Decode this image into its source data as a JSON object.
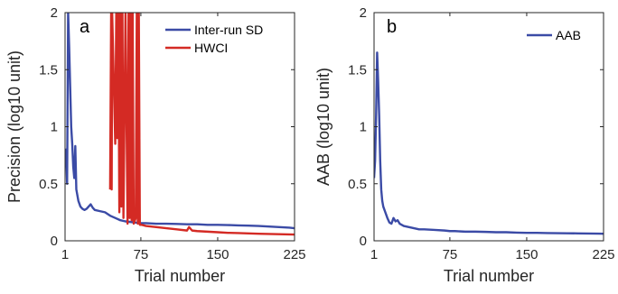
{
  "chart_data": [
    {
      "type": "line",
      "panel_label": "a",
      "xlabel": "Trial number",
      "ylabel": "Precision (log10 unit)",
      "xlim": [
        1,
        225
      ],
      "ylim": [
        0,
        2
      ],
      "xticks": [
        1,
        75,
        150,
        225
      ],
      "yticks": [
        0,
        0.5,
        1,
        1.5,
        2
      ],
      "xtick_labels": [
        "1",
        "75",
        "150",
        "225"
      ],
      "ytick_labels": [
        "0",
        "0.5",
        "1",
        "1.5",
        "2"
      ],
      "legend_position": "top-right",
      "grid": false,
      "series": [
        {
          "name": "Inter-run SD",
          "color": "#3b4ba6",
          "x": [
            1,
            2,
            3,
            4,
            5,
            6,
            7,
            8,
            9,
            10,
            11,
            12,
            14,
            16,
            18,
            20,
            22,
            24,
            26,
            28,
            30,
            35,
            40,
            45,
            50,
            55,
            60,
            65,
            70,
            75,
            80,
            90,
            100,
            110,
            120,
            130,
            140,
            150,
            160,
            170,
            180,
            190,
            200,
            210,
            220,
            225
          ],
          "y": [
            0.75,
            0.8,
            0.5,
            2.0,
            1.7,
            1.35,
            1.0,
            0.85,
            0.65,
            0.55,
            0.83,
            0.45,
            0.35,
            0.3,
            0.28,
            0.27,
            0.28,
            0.3,
            0.32,
            0.29,
            0.27,
            0.26,
            0.25,
            0.22,
            0.2,
            0.18,
            0.17,
            0.165,
            0.16,
            0.155,
            0.155,
            0.15,
            0.15,
            0.148,
            0.145,
            0.145,
            0.14,
            0.14,
            0.138,
            0.135,
            0.133,
            0.13,
            0.125,
            0.12,
            0.115,
            0.11
          ]
        },
        {
          "name": "HWCI",
          "color": "#d42a24",
          "x": [
            45,
            46,
            46.5,
            47,
            50,
            51,
            52,
            53,
            54,
            55,
            56,
            57,
            58,
            60,
            62,
            63,
            64,
            65,
            66,
            67,
            68,
            70,
            71,
            72,
            73,
            74,
            76,
            80,
            90,
            100,
            110,
            120,
            122,
            125,
            130,
            140,
            150,
            160,
            170,
            180,
            190,
            200,
            210,
            220,
            225
          ],
          "y": [
            0.45,
            2.0,
            0.45,
            2.0,
            0.85,
            2.0,
            0.9,
            2.0,
            0.25,
            2.0,
            0.3,
            2.0,
            0.2,
            2.0,
            0.15,
            2.0,
            0.2,
            2.0,
            0.18,
            2.0,
            0.15,
            0.2,
            2.0,
            0.15,
            2.0,
            0.14,
            0.14,
            0.13,
            0.12,
            0.11,
            0.1,
            0.09,
            0.12,
            0.09,
            0.085,
            0.08,
            0.075,
            0.07,
            0.068,
            0.065,
            0.062,
            0.06,
            0.058,
            0.056,
            0.055
          ]
        }
      ]
    },
    {
      "type": "line",
      "panel_label": "b",
      "xlabel": "Trial number",
      "ylabel": "AAB (log10 unit)",
      "xlim": [
        1,
        225
      ],
      "ylim": [
        0,
        2
      ],
      "xticks": [
        1,
        75,
        150,
        225
      ],
      "yticks": [
        0,
        0.5,
        1,
        1.5,
        2
      ],
      "xtick_labels": [
        "1",
        "75",
        "150",
        "225"
      ],
      "ytick_labels": [
        "0",
        "0.5",
        "1",
        "1.5",
        "2"
      ],
      "legend_position": "top-right",
      "grid": false,
      "series": [
        {
          "name": "AAB",
          "color": "#3b4ba6",
          "x": [
            1,
            2,
            3,
            4,
            5,
            6,
            7,
            8,
            9,
            10,
            12,
            14,
            16,
            18,
            20,
            22,
            24,
            26,
            28,
            30,
            35,
            40,
            45,
            50,
            60,
            70,
            75,
            80,
            90,
            100,
            110,
            120,
            130,
            140,
            150,
            160,
            170,
            180,
            190,
            200,
            210,
            220,
            225
          ],
          "y": [
            0.55,
            0.7,
            1.1,
            1.65,
            1.4,
            1.1,
            0.7,
            0.45,
            0.35,
            0.3,
            0.25,
            0.2,
            0.16,
            0.15,
            0.2,
            0.17,
            0.18,
            0.15,
            0.14,
            0.13,
            0.12,
            0.11,
            0.1,
            0.1,
            0.095,
            0.09,
            0.085,
            0.085,
            0.08,
            0.08,
            0.078,
            0.075,
            0.075,
            0.072,
            0.07,
            0.07,
            0.068,
            0.067,
            0.066,
            0.065,
            0.064,
            0.063,
            0.062
          ]
        }
      ]
    }
  ]
}
